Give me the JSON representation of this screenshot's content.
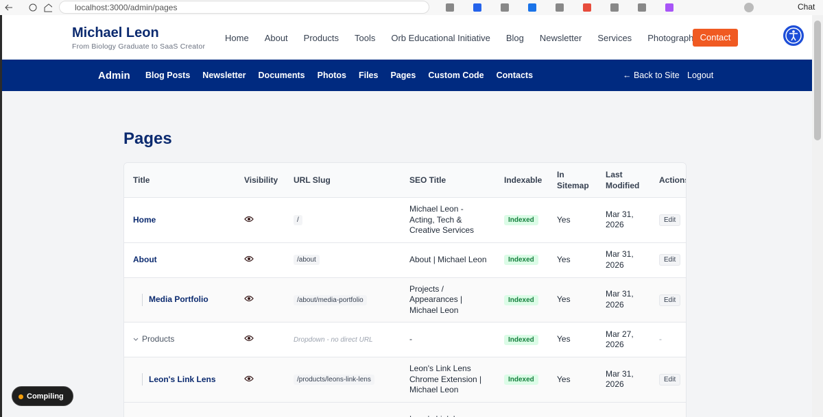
{
  "browser": {
    "url": "localhost:3000/admin/pages",
    "chat": "Chat"
  },
  "site": {
    "title": "Michael Leon",
    "tagline": "From Biology Graduate to SaaS Creator",
    "nav": [
      "Home",
      "About",
      "Products",
      "Tools",
      "Orb Educational Initiative",
      "Blog",
      "Newsletter",
      "Services",
      "Photography"
    ],
    "cta": "Contact"
  },
  "admin": {
    "brand": "Admin",
    "links": [
      "Blog Posts",
      "Newsletter",
      "Documents",
      "Photos",
      "Files",
      "Pages",
      "Custom Code",
      "Contacts"
    ],
    "back": "← Back to Site",
    "logout": "Logout"
  },
  "page": {
    "heading": "Pages"
  },
  "table": {
    "columns": [
      "Title",
      "Visibility",
      "URL Slug",
      "SEO Title",
      "Indexable",
      "In Sitemap",
      "Last Modified",
      "Actions"
    ],
    "rows": [
      {
        "title": "Home",
        "slug": "/",
        "seo": "Michael Leon - Acting, Tech & Creative Services",
        "indexable": "Indexed",
        "sitemap": "Yes",
        "modified": "Mar 31, 2026",
        "action": "Edit"
      },
      {
        "title": "About",
        "slug": "/about",
        "seo": "About | Michael Leon",
        "indexable": "Indexed",
        "sitemap": "Yes",
        "modified": "Mar 31, 2026",
        "action": "Edit",
        "children": [
          {
            "title": "Media Portfolio",
            "slug": "/about/media-portfolio",
            "seo": "Projects / Appearances | Michael Leon",
            "indexable": "Indexed",
            "sitemap": "Yes",
            "modified": "Mar 31, 2026",
            "action": "Edit"
          }
        ]
      },
      {
        "title": "Products",
        "slug_note": "Dropdown - no direct URL",
        "seo": "-",
        "indexable": "Indexed",
        "sitemap": "Yes",
        "modified": "Mar 27, 2026",
        "action": "-",
        "children": [
          {
            "title": "Leon's Link Lens",
            "slug": "/products/leons-link-lens",
            "seo": "Leon's Link Lens Chrome Extension | Michael Leon",
            "indexable": "Indexed",
            "sitemap": "Yes",
            "modified": "Mar 31, 2026",
            "action": "Edit"
          },
          {
            "seo": "Leon's Link Lens"
          }
        ]
      }
    ]
  },
  "status": {
    "label": "Compiling"
  }
}
